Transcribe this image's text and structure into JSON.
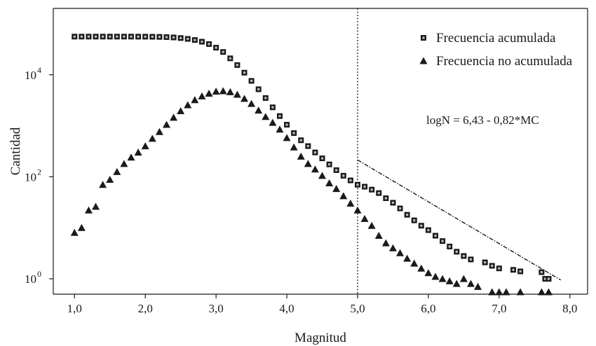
{
  "chart_data": {
    "type": "scatter",
    "xlabel": "Magnitud",
    "ylabel": "Cantidad",
    "y_scale": "log",
    "xlim": [
      0.7,
      8.25
    ],
    "ylim": [
      0.5,
      200000
    ],
    "x_ticks": [
      1.0,
      2.0,
      3.0,
      4.0,
      5.0,
      6.0,
      7.0,
      8.0
    ],
    "x_tick_labels": [
      "1,0",
      "2,0",
      "3,0",
      "4,0",
      "5,0",
      "6,0",
      "7,0",
      "8,0"
    ],
    "y_ticks": [
      1,
      100,
      10000
    ],
    "y_tick_base": "10",
    "y_tick_exponents": [
      "0",
      "2",
      "4"
    ],
    "grid": false,
    "legend_position": "top-right",
    "vertical_line_x": 5.0,
    "annotation": "logN = 6,43 - 0,82*MC",
    "colors": {
      "marker": "#1a1a1a",
      "axis": "#1a1a1a"
    },
    "series": [
      {
        "name": "Frecuencia acumulada",
        "marker": "square",
        "x": [
          1.0,
          1.1,
          1.2,
          1.3,
          1.4,
          1.5,
          1.6,
          1.7,
          1.8,
          1.9,
          2.0,
          2.1,
          2.2,
          2.3,
          2.4,
          2.5,
          2.6,
          2.7,
          2.8,
          2.9,
          3.0,
          3.1,
          3.2,
          3.3,
          3.4,
          3.5,
          3.6,
          3.7,
          3.8,
          3.9,
          4.0,
          4.1,
          4.2,
          4.3,
          4.4,
          4.5,
          4.6,
          4.7,
          4.8,
          4.9,
          5.0,
          5.1,
          5.2,
          5.3,
          5.4,
          5.5,
          5.6,
          5.7,
          5.8,
          5.9,
          6.0,
          6.1,
          6.2,
          6.3,
          6.4,
          6.5,
          6.6,
          6.8,
          6.9,
          7.0,
          7.2,
          7.3,
          7.6,
          7.65,
          7.7
        ],
        "y": [
          56000,
          56000,
          56000,
          56000,
          56000,
          56000,
          56000,
          56000,
          56000,
          55900,
          55800,
          55600,
          55300,
          54800,
          53900,
          52500,
          50500,
          48000,
          44500,
          40000,
          34000,
          28000,
          21000,
          15500,
          11000,
          7600,
          5200,
          3500,
          2300,
          1550,
          1050,
          720,
          520,
          400,
          300,
          230,
          175,
          135,
          105,
          85,
          70,
          64,
          56,
          48,
          38,
          31,
          24,
          18,
          14,
          11,
          9.0,
          7.0,
          5.5,
          4.3,
          3.4,
          2.8,
          2.4,
          2.1,
          1.8,
          1.6,
          1.5,
          1.4,
          1.35,
          1.0,
          1.0
        ]
      },
      {
        "name": "Frecuencia no acumulada",
        "marker": "triangle",
        "x": [
          1.0,
          1.1,
          1.2,
          1.3,
          1.4,
          1.5,
          1.6,
          1.7,
          1.8,
          1.9,
          2.0,
          2.1,
          2.2,
          2.3,
          2.4,
          2.5,
          2.6,
          2.7,
          2.8,
          2.9,
          3.0,
          3.1,
          3.2,
          3.3,
          3.4,
          3.5,
          3.6,
          3.7,
          3.8,
          3.9,
          4.0,
          4.1,
          4.2,
          4.3,
          4.4,
          4.5,
          4.6,
          4.7,
          4.8,
          4.9,
          5.0,
          5.1,
          5.2,
          5.3,
          5.4,
          5.5,
          5.6,
          5.7,
          5.8,
          5.9,
          6.0,
          6.1,
          6.2,
          6.3,
          6.4,
          6.5,
          6.6,
          6.7,
          6.9,
          7.0,
          7.1,
          7.3,
          7.6,
          7.7
        ],
        "y": [
          8,
          10,
          22,
          26,
          70,
          88,
          125,
          180,
          240,
          300,
          400,
          560,
          760,
          1050,
          1450,
          1950,
          2550,
          3200,
          3800,
          4300,
          4700,
          4800,
          4600,
          4100,
          3400,
          2700,
          2000,
          1500,
          1150,
          850,
          580,
          380,
          250,
          180,
          140,
          105,
          75,
          58,
          42,
          30,
          22,
          15,
          11,
          7,
          5,
          4,
          3.2,
          2.5,
          2,
          1.6,
          1.3,
          1.1,
          1.0,
          0.9,
          0.8,
          1.0,
          0.8,
          0.7,
          0.55,
          0.55,
          0.55,
          0.55,
          0.55,
          0.55
        ]
      }
    ]
  }
}
